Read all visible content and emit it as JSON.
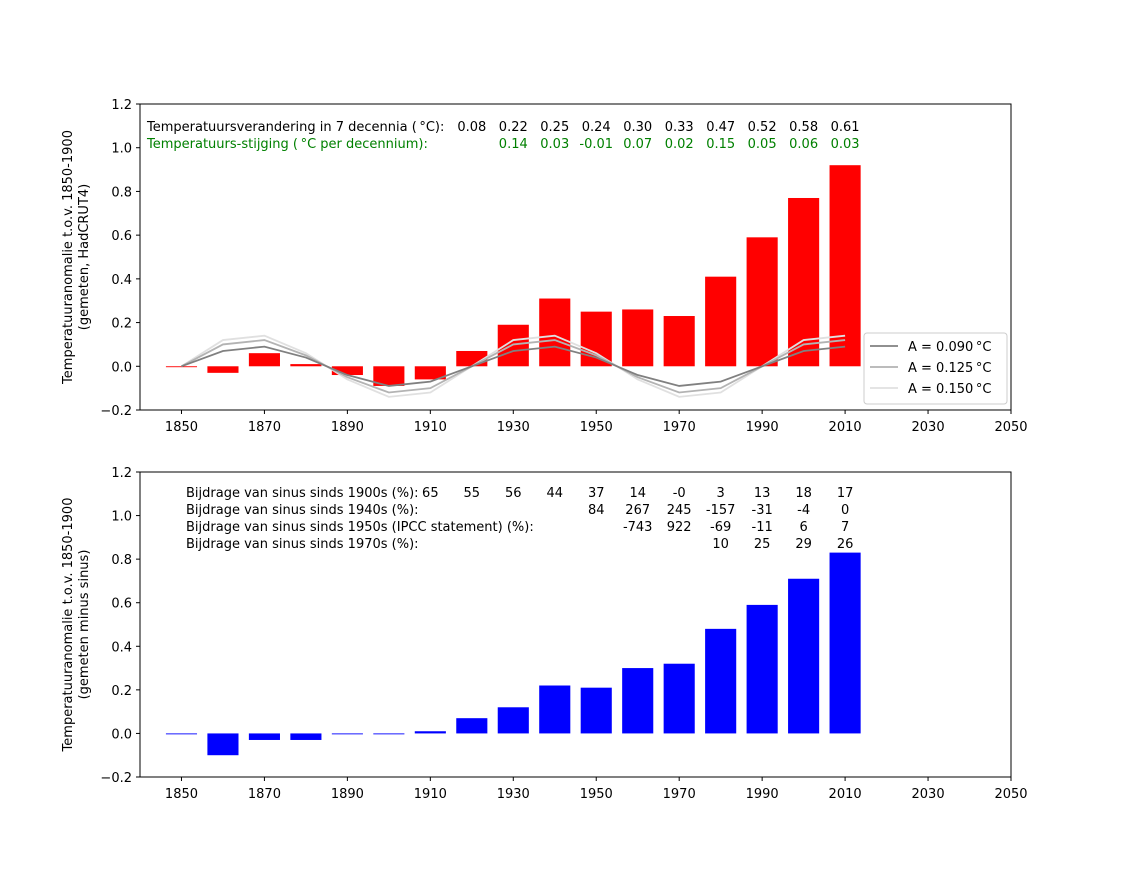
{
  "colors": {
    "top_bars": "#ff0000",
    "bottom_bars": "#0000ff",
    "rate_text": "#008000",
    "sine_090": "#808080",
    "sine_125": "#b3b3b3",
    "sine_150": "#e0e0e0"
  },
  "chart_data": [
    {
      "type": "bar",
      "ylabel_line1": "Temperatuuranomalie t.o.v. 1850-1900",
      "ylabel_line2": "(gemeten, HadCRUT4)",
      "xlim": [
        1840,
        2050
      ],
      "ylim": [
        -0.2,
        1.2
      ],
      "xticks": [
        "1850",
        "1870",
        "1890",
        "1910",
        "1930",
        "1950",
        "1970",
        "1990",
        "2010",
        "2030",
        "2050"
      ],
      "yticks": [
        "−0.2",
        "0.0",
        "0.2",
        "0.4",
        "0.6",
        "0.8",
        "1.0",
        "1.2"
      ],
      "x": [
        1850,
        1860,
        1870,
        1880,
        1890,
        1900,
        1910,
        1920,
        1930,
        1940,
        1950,
        1960,
        1970,
        1980,
        1990,
        2000,
        2010
      ],
      "values": [
        0.0,
        -0.03,
        0.06,
        0.01,
        -0.04,
        -0.09,
        -0.06,
        0.07,
        0.19,
        0.31,
        0.25,
        0.26,
        0.23,
        0.41,
        0.59,
        0.77,
        0.92
      ],
      "lines": [
        {
          "name": "A = 0.090 °C",
          "color": "#808080",
          "values": [
            0.0,
            0.07,
            0.09,
            0.04,
            -0.04,
            -0.09,
            -0.07,
            0.0,
            0.07,
            0.09,
            0.04,
            -0.04,
            -0.09,
            -0.07,
            0.0,
            0.07,
            0.09
          ]
        },
        {
          "name": "A = 0.125 °C",
          "color": "#b3b3b3",
          "values": [
            0.0,
            0.1,
            0.12,
            0.05,
            -0.05,
            -0.12,
            -0.1,
            0.0,
            0.1,
            0.12,
            0.05,
            -0.05,
            -0.12,
            -0.1,
            0.0,
            0.1,
            0.12
          ]
        },
        {
          "name": "A = 0.150 °C",
          "color": "#e0e0e0",
          "values": [
            0.0,
            0.12,
            0.14,
            0.06,
            -0.06,
            -0.14,
            -0.12,
            0.0,
            0.12,
            0.14,
            0.06,
            -0.06,
            -0.14,
            -0.12,
            0.0,
            0.12,
            0.14
          ]
        }
      ],
      "legend_position": "lower-right",
      "annotations": {
        "change_label": "Temperatuursverandering in 7 decennia ( °C):",
        "change_values": [
          {
            "x": 1920,
            "text": "0.08"
          },
          {
            "x": 1930,
            "text": "0.22"
          },
          {
            "x": 1940,
            "text": "0.25"
          },
          {
            "x": 1950,
            "text": "0.24"
          },
          {
            "x": 1960,
            "text": "0.30"
          },
          {
            "x": 1970,
            "text": "0.33"
          },
          {
            "x": 1980,
            "text": "0.47"
          },
          {
            "x": 1990,
            "text": "0.52"
          },
          {
            "x": 2000,
            "text": "0.58"
          },
          {
            "x": 2010,
            "text": "0.61"
          }
        ],
        "rate_label": "Temperatuurs-stijging ( °C per decennium):",
        "rate_values": [
          {
            "x": 1930,
            "text": "0.14"
          },
          {
            "x": 1940,
            "text": "0.03"
          },
          {
            "x": 1950,
            "text": "-0.01"
          },
          {
            "x": 1960,
            "text": "0.07"
          },
          {
            "x": 1970,
            "text": "0.02"
          },
          {
            "x": 1980,
            "text": "0.15"
          },
          {
            "x": 1990,
            "text": "0.05"
          },
          {
            "x": 2000,
            "text": "0.06"
          },
          {
            "x": 2010,
            "text": "0.03"
          }
        ]
      }
    },
    {
      "type": "bar",
      "ylabel_line1": "Temperatuuranomalie t.o.v. 1850-1900",
      "ylabel_line2": "(gemeten minus sinus)",
      "xlim": [
        1840,
        2050
      ],
      "ylim": [
        -0.2,
        1.2
      ],
      "xticks": [
        "1850",
        "1870",
        "1890",
        "1910",
        "1930",
        "1950",
        "1970",
        "1990",
        "2010",
        "2030",
        "2050"
      ],
      "yticks": [
        "−0.2",
        "0.0",
        "0.2",
        "0.4",
        "0.6",
        "0.8",
        "1.0",
        "1.2"
      ],
      "x": [
        1850,
        1860,
        1870,
        1880,
        1890,
        1900,
        1910,
        1920,
        1930,
        1940,
        1950,
        1960,
        1970,
        1980,
        1990,
        2000,
        2010
      ],
      "values": [
        0.0,
        -0.1,
        -0.03,
        -0.03,
        0.0,
        0.0,
        0.01,
        0.07,
        0.12,
        0.22,
        0.21,
        0.3,
        0.32,
        0.48,
        0.59,
        0.71,
        0.83
      ],
      "annotations": {
        "rows": [
          {
            "label": "Bijdrage van sinus sinds 1900s (%):",
            "values": [
              {
                "x": 1910,
                "text": "65"
              },
              {
                "x": 1920,
                "text": "55"
              },
              {
                "x": 1930,
                "text": "56"
              },
              {
                "x": 1940,
                "text": "44"
              },
              {
                "x": 1950,
                "text": "37"
              },
              {
                "x": 1960,
                "text": "14"
              },
              {
                "x": 1970,
                "text": "-0"
              },
              {
                "x": 1980,
                "text": "3"
              },
              {
                "x": 1990,
                "text": "13"
              },
              {
                "x": 2000,
                "text": "18"
              },
              {
                "x": 2010,
                "text": "17"
              }
            ]
          },
          {
            "label": "Bijdrage van sinus sinds 1940s (%):",
            "values": [
              {
                "x": 1950,
                "text": "84"
              },
              {
                "x": 1960,
                "text": "267"
              },
              {
                "x": 1970,
                "text": "245"
              },
              {
                "x": 1980,
                "text": "-157"
              },
              {
                "x": 1990,
                "text": "-31"
              },
              {
                "x": 2000,
                "text": "-4"
              },
              {
                "x": 2010,
                "text": "0"
              }
            ]
          },
          {
            "label": "Bijdrage van sinus sinds 1950s (IPCC statement) (%):",
            "values": [
              {
                "x": 1960,
                "text": "-743"
              },
              {
                "x": 1970,
                "text": "922"
              },
              {
                "x": 1980,
                "text": "-69"
              },
              {
                "x": 1990,
                "text": "-11"
              },
              {
                "x": 2000,
                "text": "6"
              },
              {
                "x": 2010,
                "text": "7"
              }
            ]
          },
          {
            "label": "Bijdrage van sinus sinds 1970s (%):",
            "values": [
              {
                "x": 1980,
                "text": "10"
              },
              {
                "x": 1990,
                "text": "25"
              },
              {
                "x": 2000,
                "text": "29"
              },
              {
                "x": 2010,
                "text": "26"
              }
            ]
          }
        ]
      }
    }
  ]
}
